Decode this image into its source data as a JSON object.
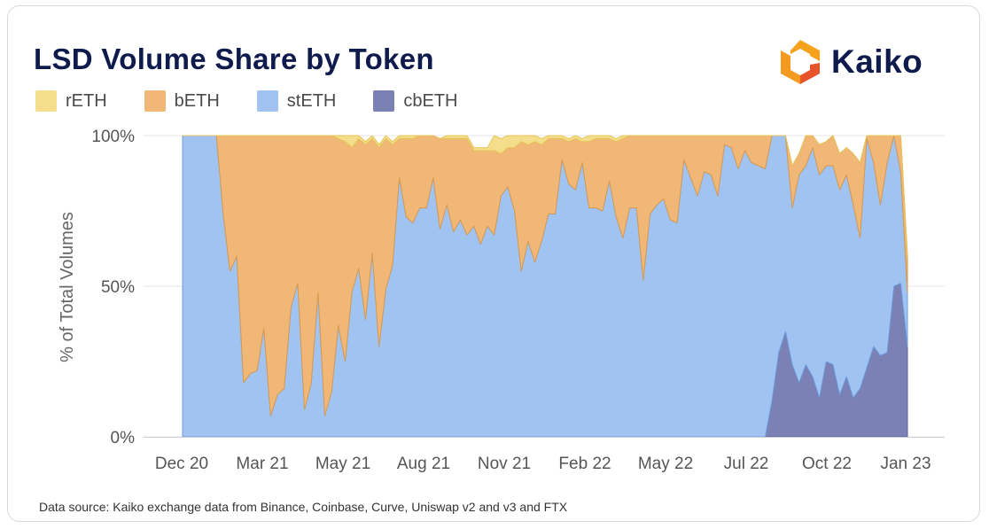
{
  "header": {
    "title": "LSD Volume Share by Token"
  },
  "brand": {
    "name": "Kaiko",
    "icon": "kaiko-logo-icon",
    "colors": [
      "#f7a21c",
      "#e8542a"
    ]
  },
  "footer": {
    "source": "Data source: Kaiko exchange data from Binance, Coinbase, Curve, Uniswap v2 and v3 and FTX"
  },
  "chart_data": {
    "type": "area",
    "stacked": true,
    "title": "LSD Volume Share by Token",
    "xlabel": "",
    "ylabel": "% of Total Volumes",
    "ylim": [
      0,
      100
    ],
    "legend_position": "top-left",
    "grid": true,
    "x_ticks": [
      "Dec 20",
      "Mar 21",
      "May 21",
      "Aug 21",
      "Nov 21",
      "Feb 22",
      "May 22",
      "Jul 22",
      "Oct 22",
      "Jan 23"
    ],
    "y_ticks": [
      "0%",
      "50%",
      "100%"
    ],
    "x_start": "2020-12",
    "series": [
      {
        "name": "rETH",
        "color": "#f4dd8b",
        "values": [
          0,
          0,
          0,
          0,
          0,
          0,
          0,
          0,
          0,
          0,
          0,
          0,
          0,
          0,
          0,
          0,
          0,
          0,
          0,
          0,
          0,
          0,
          0,
          1,
          2,
          4,
          1,
          3,
          1,
          4,
          1,
          3,
          1,
          1,
          0,
          0,
          0,
          0,
          1,
          1,
          1,
          1,
          1,
          1,
          1,
          5,
          5,
          6,
          5,
          6,
          4,
          3,
          2,
          1,
          1,
          1,
          1,
          2,
          1,
          2,
          2,
          1,
          1,
          1,
          2,
          1,
          0,
          0,
          0,
          0,
          0,
          0,
          0,
          0,
          0,
          0,
          0,
          0,
          0,
          0,
          0,
          0,
          0,
          0,
          0,
          0,
          0,
          0,
          0,
          0,
          0,
          0,
          0,
          0,
          0,
          0,
          0,
          0,
          0,
          0,
          0,
          0,
          0,
          0,
          0,
          0
        ]
      },
      {
        "name": "bETH",
        "color": "#f1b777",
        "values": [
          0,
          0,
          0,
          0,
          0,
          0,
          26,
          45,
          40,
          82,
          79,
          78,
          64,
          93,
          86,
          84,
          57,
          49,
          91,
          82,
          52,
          93,
          85,
          62,
          73,
          48,
          43,
          58,
          38,
          66,
          50,
          40,
          13,
          26,
          28,
          24,
          24,
          14,
          30,
          22,
          31,
          27,
          32,
          25,
          31,
          25,
          28,
          14,
          13,
          21,
          43,
          32,
          40,
          32,
          25,
          25,
          7,
          14,
          17,
          7,
          22,
          23,
          24,
          14,
          25,
          33,
          24,
          24,
          48,
          26,
          23,
          21,
          28,
          29,
          8,
          14,
          20,
          12,
          13,
          20,
          3,
          4,
          11,
          5,
          9,
          10,
          11,
          10,
          9,
          13,
          14,
          7,
          16,
          18,
          10,
          8,
          10,
          12,
          9,
          17,
          25,
          11,
          20,
          36,
          13,
          10,
          13,
          12
        ]
      },
      {
        "name": "stETH",
        "color": "#a0c3f2",
        "values": [
          100,
          100,
          100,
          100,
          100,
          100,
          74,
          55,
          60,
          18,
          21,
          22,
          36,
          7,
          14,
          16,
          43,
          51,
          9,
          18,
          48,
          7,
          15,
          37,
          25,
          48,
          56,
          39,
          61,
          30,
          49,
          57,
          86,
          73,
          71,
          76,
          76,
          86,
          69,
          77,
          68,
          72,
          67,
          70,
          64,
          70,
          67,
          80,
          83,
          75,
          55,
          65,
          58,
          65,
          74,
          74,
          92,
          84,
          82,
          91,
          76,
          76,
          75,
          85,
          73,
          66,
          76,
          76,
          52,
          74,
          77,
          79,
          72,
          71,
          92,
          86,
          80,
          88,
          87,
          80,
          97,
          96,
          89,
          95,
          91,
          90,
          89,
          90,
          91,
          74,
          52,
          69,
          66,
          76,
          74,
          65,
          66,
          68,
          67,
          64,
          50,
          76,
          61,
          50,
          63,
          60,
          37,
          18
        ]
      },
      {
        "name": "cbETH",
        "color": "#7b80b5",
        "values": [
          0,
          0,
          0,
          0,
          0,
          0,
          0,
          0,
          0,
          0,
          0,
          0,
          0,
          0,
          0,
          0,
          0,
          0,
          0,
          0,
          0,
          0,
          0,
          0,
          0,
          0,
          0,
          0,
          0,
          0,
          0,
          0,
          0,
          0,
          0,
          0,
          0,
          0,
          0,
          0,
          0,
          0,
          0,
          0,
          0,
          0,
          0,
          0,
          0,
          0,
          0,
          0,
          0,
          0,
          0,
          0,
          0,
          0,
          0,
          0,
          0,
          0,
          0,
          0,
          0,
          0,
          0,
          0,
          0,
          0,
          0,
          0,
          0,
          0,
          0,
          0,
          0,
          0,
          0,
          0,
          0,
          0,
          0,
          0,
          0,
          0,
          0,
          0,
          0,
          0,
          0,
          0,
          12,
          28,
          35,
          24,
          18,
          24,
          20,
          13,
          25,
          24,
          14,
          20,
          13,
          13,
          16,
          23,
          30,
          27,
          28,
          50,
          51,
          30
        ]
      }
    ]
  }
}
